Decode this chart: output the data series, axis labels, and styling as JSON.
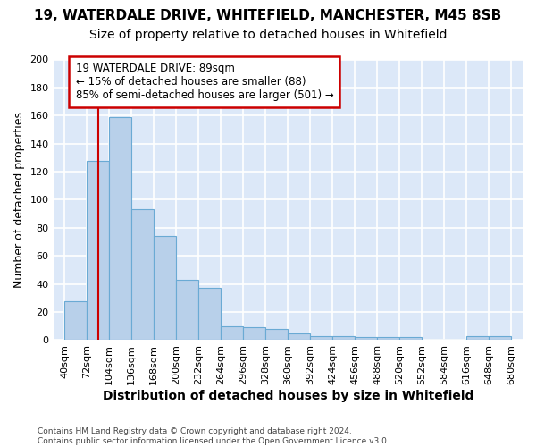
{
  "title1": "19, WATERDALE DRIVE, WHITEFIELD, MANCHESTER, M45 8SB",
  "title2": "Size of property relative to detached houses in Whitefield",
  "xlabel": "Distribution of detached houses by size in Whitefield",
  "ylabel": "Number of detached properties",
  "footnote": "Contains HM Land Registry data © Crown copyright and database right 2024.\nContains public sector information licensed under the Open Government Licence v3.0.",
  "bin_starts": [
    40,
    72,
    104,
    136,
    168,
    200,
    232,
    264,
    296,
    328,
    360,
    392,
    424,
    456,
    488,
    520,
    552,
    584,
    616,
    648
  ],
  "bin_width": 32,
  "bar_values": [
    28,
    128,
    159,
    93,
    74,
    43,
    37,
    10,
    9,
    8,
    5,
    3,
    3,
    2,
    2,
    2,
    0,
    0,
    3,
    3
  ],
  "bar_color": "#b8d0ea",
  "bar_edge_color": "#6aaad4",
  "property_size": 89,
  "property_label": "19 WATERDALE DRIVE: 89sqm",
  "pct_smaller": 15,
  "n_smaller": 88,
  "pct_larger_semi": 85,
  "n_larger_semi": 501,
  "vline_color": "#cc0000",
  "annotation_box_color": "#cc0000",
  "ylim": [
    0,
    200
  ],
  "yticks": [
    0,
    20,
    40,
    60,
    80,
    100,
    120,
    140,
    160,
    180,
    200
  ],
  "plot_bg_color": "#dce8f8",
  "fig_bg_color": "#ffffff",
  "grid_color": "#ffffff",
  "title1_fontsize": 11,
  "title2_fontsize": 10,
  "tick_fontsize": 8,
  "ylabel_fontsize": 9,
  "xlabel_fontsize": 10
}
